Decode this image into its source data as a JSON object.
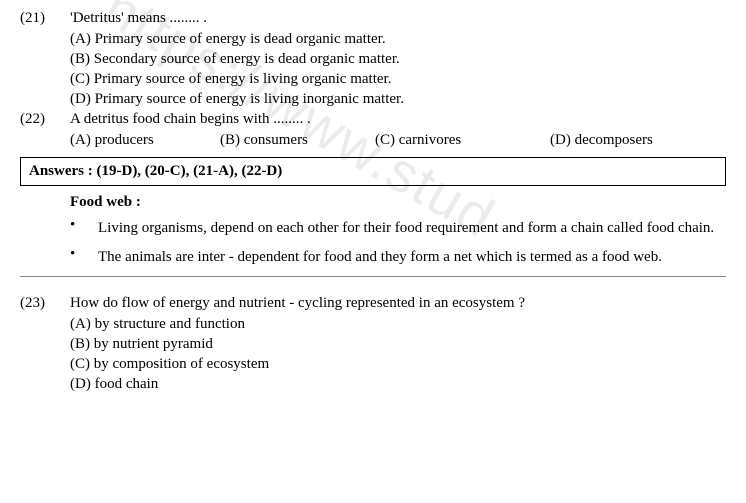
{
  "q21": {
    "num": "(21)",
    "text": "'Detritus' means ........ .",
    "opts": {
      "a": "(A) Primary source of energy is dead organic matter.",
      "b": "(B) Secondary source of energy is dead organic matter.",
      "c": "(C) Primary source of energy is living organic matter.",
      "d": "(D) Primary source of energy is living inorganic matter."
    }
  },
  "q22": {
    "num": "(22)",
    "text": "A detritus food chain begins with ........ .",
    "opts": {
      "a": "(A) producers",
      "b": "(B) consumers",
      "c": "(C) carnivores",
      "d": "(D) decomposers"
    }
  },
  "answers": "Answers  :  (19-D),  (20-C),  (21-A),  (22-D)",
  "section": {
    "heading": "Food  web :",
    "bullet1": "Living organisms, depend on each other for their food requirement and form a chain called food chain.",
    "bullet2": "The animals are inter - dependent for food and they form a net which is termed as a food web."
  },
  "q23": {
    "num": "(23)",
    "text": "How do flow of energy and nutrient - cycling represented in an ecosystem ?",
    "opts": {
      "a": "(A) by structure and function",
      "b": "(B) by nutrient pyramid",
      "c": "(C) by composition of ecosystem",
      "d": "(D) food chain"
    }
  },
  "watermark": "https://www.stud"
}
